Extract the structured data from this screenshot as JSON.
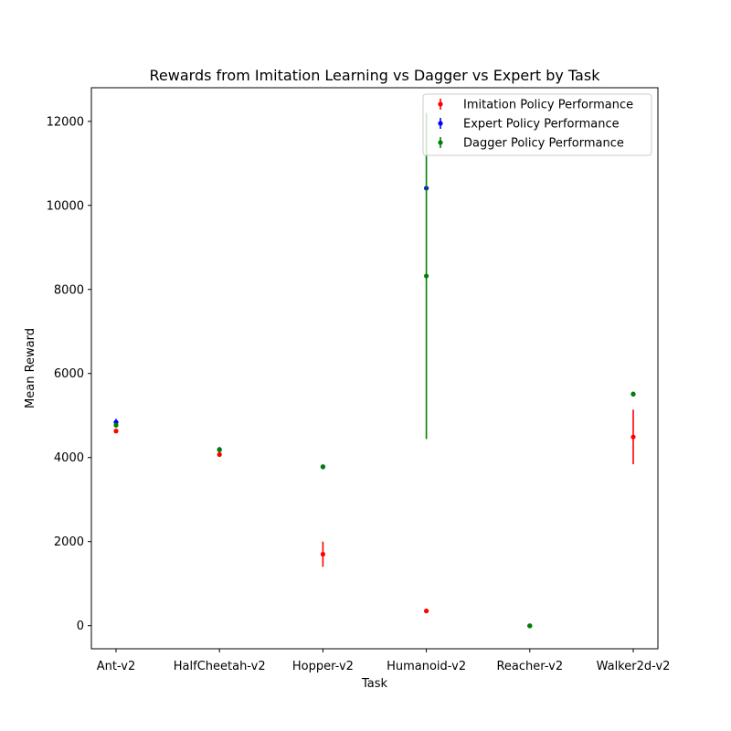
{
  "chart_data": {
    "type": "scatter",
    "title": "Rewards from Imitation Learning vs Dagger vs Expert by Task",
    "xlabel": "Task",
    "ylabel": "Mean Reward",
    "categories": [
      "Ant-v2",
      "HalfCheetah-v2",
      "Hopper-v2",
      "Humanoid-v2",
      "Reacher-v2",
      "Walker2d-v2"
    ],
    "ylim": [
      -550,
      12800
    ],
    "yticks": [
      0,
      2000,
      4000,
      6000,
      8000,
      10000,
      12000
    ],
    "yticklabels": [
      "0",
      "2000",
      "4000",
      "6000",
      "8000",
      "10000",
      "12000"
    ],
    "grid": false,
    "legend_position": "top-right",
    "series": [
      {
        "name": "Imitation Policy Performance",
        "color": "#ff0000",
        "values": [
          4630,
          4070,
          1700,
          350,
          -5,
          4490
        ],
        "errors": [
          30,
          30,
          300,
          40,
          2,
          650
        ]
      },
      {
        "name": "Expert Policy Performance",
        "color": "#0000ff",
        "values": [
          4840,
          4190,
          3780,
          10410,
          -4,
          5510
        ],
        "errors": [
          80,
          60,
          5,
          50,
          2,
          30
        ]
      },
      {
        "name": "Dagger Policy Performance",
        "color": "#008000",
        "values": [
          4770,
          4180,
          3780,
          8320,
          -5,
          5510
        ],
        "errors": [
          60,
          60,
          5,
          3880,
          2,
          30
        ]
      }
    ]
  }
}
